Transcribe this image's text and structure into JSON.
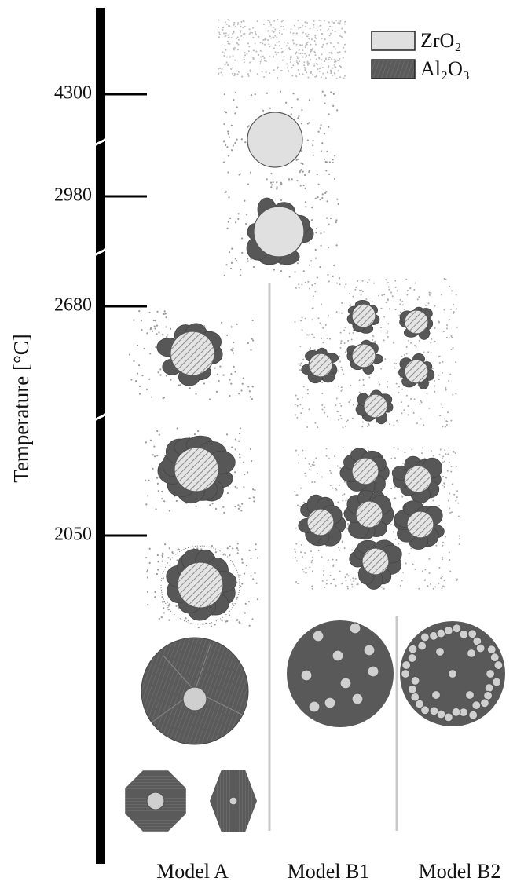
{
  "axis": {
    "label": "Temperature [°C]",
    "ticks": [
      "4300",
      "2980",
      "2680",
      "2050"
    ]
  },
  "legend": [
    {
      "label": "ZrO₂"
    },
    {
      "label": "Al₂O₃"
    }
  ],
  "models": [
    "Model A",
    "Model B1",
    "Model B2"
  ]
}
